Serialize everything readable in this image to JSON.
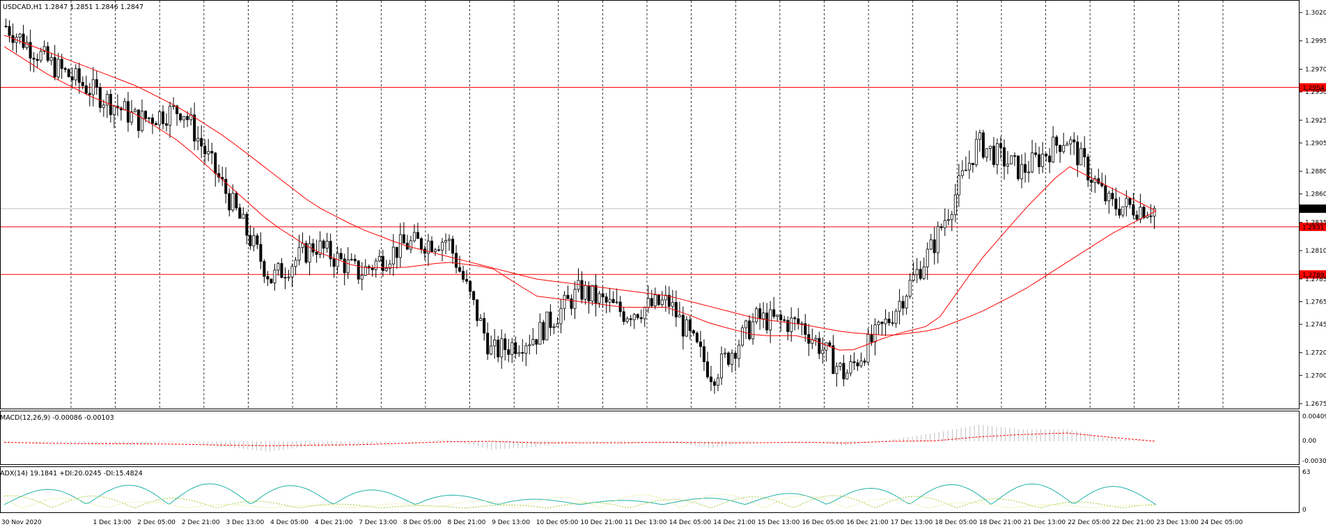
{
  "main": {
    "header": "USDCAD,H1  1.2847 1.2851 1.2846 1.2847",
    "price_ticks": [
      "1.3020",
      "1.2995",
      "1.2970",
      "1.2950",
      "1.2925",
      "1.2905",
      "1.2880",
      "1.2860",
      "1.2835",
      "1.2810",
      "1.2785",
      "1.2765",
      "1.2745",
      "1.2720",
      "1.2700",
      "1.2675"
    ],
    "current_price": "1.2847",
    "levels": [
      {
        "label": "1.2954",
        "value": 1.2954
      },
      {
        "label": "1.2831",
        "value": 1.2831
      },
      {
        "label": "1.2789",
        "value": 1.2789
      }
    ],
    "line_color": "#ff0000",
    "candle_color": "#000000"
  },
  "macd": {
    "header": "MACD(12,26,9) -0.00086 -0.00103",
    "ticks": [
      "0.00409",
      "0.00",
      "-0.00301"
    ]
  },
  "adx": {
    "header": "ADX(14) 19.1841 +DI:20.0245 -DI:15.4824",
    "ticks": [
      "63",
      "0"
    ],
    "adx_color": "#20b2aa",
    "plus_di_color": "#9acd32",
    "minus_di_color": "#f0e68c"
  },
  "time_axis": [
    "30 Nov 2020",
    "1 Dec 13:00",
    "2 Dec 05:00",
    "2 Dec 21:00",
    "3 Dec 13:00",
    "4 Dec 05:00",
    "4 Dec 21:00",
    "7 Dec 13:00",
    "8 Dec 05:00",
    "8 Dec 21:00",
    "9 Dec 13:00",
    "10 Dec 05:00",
    "10 Dec 21:00",
    "11 Dec 13:00",
    "14 Dec 05:00",
    "14 Dec 21:00",
    "15 Dec 13:00",
    "16 Dec 05:00",
    "16 Dec 21:00",
    "17 Dec 13:00",
    "18 Dec 05:00",
    "18 Dec 21:00",
    "21 Dec 13:00",
    "22 Dec 05:00",
    "22 Dec 21:00",
    "23 Dec 13:00",
    "24 Dec 05:00"
  ],
  "chart_data": {
    "type": "line",
    "title": "USDCAD,H1",
    "ylim": [
      1.2675,
      1.302
    ],
    "x": [
      "30 Nov 2020",
      "1 Dec 13:00",
      "2 Dec 05:00",
      "2 Dec 21:00",
      "3 Dec 13:00",
      "4 Dec 05:00",
      "4 Dec 21:00",
      "7 Dec 13:00",
      "8 Dec 05:00",
      "8 Dec 21:00",
      "9 Dec 13:00",
      "10 Dec 05:00",
      "10 Dec 21:00",
      "11 Dec 13:00",
      "14 Dec 05:00",
      "14 Dec 21:00",
      "15 Dec 13:00",
      "16 Dec 05:00",
      "16 Dec 21:00",
      "17 Dec 13:00",
      "18 Dec 05:00",
      "18 Dec 21:00",
      "21 Dec 13:00",
      "22 Dec 05:00",
      "22 Dec 21:00",
      "23 Dec 13:00",
      "24 Dec 05:00"
    ],
    "series": [
      {
        "name": "USDCAD,H1",
        "values": [
          1.3008,
          1.2975,
          1.295,
          1.2925,
          1.2935,
          1.286,
          1.2785,
          1.2815,
          1.279,
          1.2815,
          1.282,
          1.272,
          1.2735,
          1.2775,
          1.2755,
          1.2765,
          1.27,
          1.275,
          1.2745,
          1.27,
          1.275,
          1.2815,
          1.2905,
          1.288,
          1.291,
          1.285,
          1.2847
        ]
      }
    ],
    "ma_fast": [
      1.299,
      1.2965,
      1.2945,
      1.293,
      1.2905,
      1.287,
      1.2835,
      1.281,
      1.2795,
      1.2795,
      1.28,
      1.2795,
      1.277,
      1.2765,
      1.276,
      1.276,
      1.2745,
      1.2735,
      1.2735,
      1.272,
      1.2735,
      1.2745,
      1.28,
      1.2845,
      1.2885,
      1.2865,
      1.2845
    ],
    "ma_slow": [
      1.3,
      1.2985,
      1.297,
      1.2955,
      1.2935,
      1.291,
      1.288,
      1.285,
      1.283,
      1.2815,
      1.2805,
      1.2795,
      1.2785,
      1.278,
      1.2775,
      1.277,
      1.276,
      1.275,
      1.2745,
      1.2738,
      1.2735,
      1.274,
      1.2755,
      1.2775,
      1.28,
      1.2825,
      1.2845
    ],
    "grid": true
  }
}
